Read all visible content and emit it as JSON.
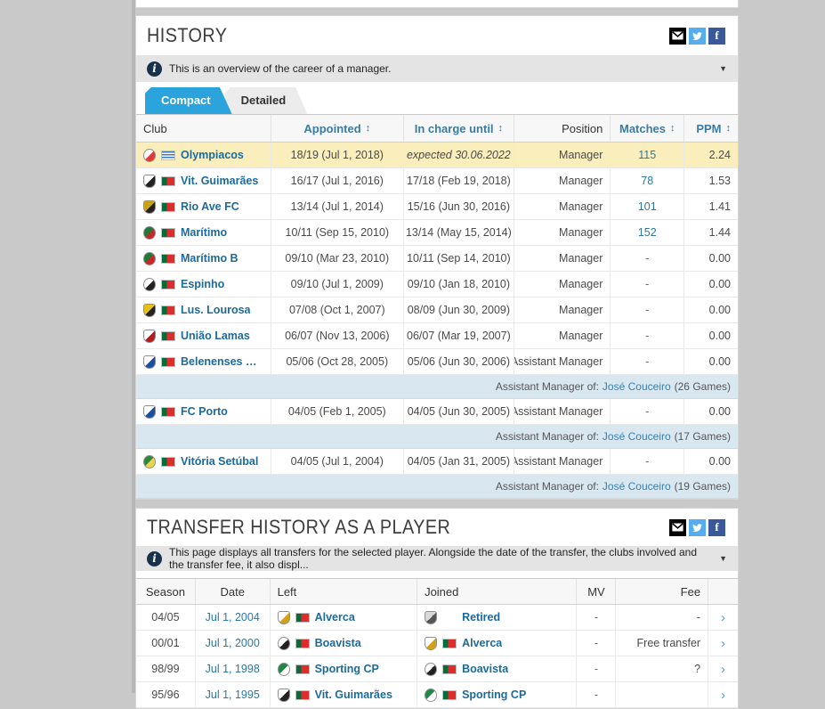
{
  "glyphs": {
    "sort": "↕",
    "caret": "▼",
    "chevron": "›",
    "info": "i",
    "facebook": "f"
  },
  "colors": {
    "accent_tab": "#2ba3dc",
    "highlight_row": "#fbeebd",
    "note_row": "#d9e7f1",
    "link": "#2b77a5",
    "club_link": "#1c6a9c",
    "twitter": "#55acee",
    "facebook": "#3b5998",
    "email": "#000000"
  },
  "history": {
    "title": "HISTORY",
    "info_text": "This is an overview of the career of a manager.",
    "tabs": [
      {
        "label": "Compact",
        "active": true
      },
      {
        "label": "Detailed",
        "active": false
      }
    ],
    "columns": {
      "club": "Club",
      "appointed": "Appointed",
      "until": "In charge until",
      "position": "Position",
      "matches": "Matches",
      "ppm": "PPM"
    },
    "rows": [
      {
        "type": "club",
        "club": "Olympiacos",
        "flag": "gr",
        "crest": {
          "shape": "circle",
          "c1": "#ffffff",
          "c2": "#e03a3a"
        },
        "appointed": "18/19 (Jul 1, 2018)",
        "until": "expected 30.06.2022",
        "until_italic": true,
        "position": "Manager",
        "matches": "115",
        "matches_link": true,
        "ppm": "2.24",
        "highlight": true
      },
      {
        "type": "club",
        "club": "Vit. Guimarães",
        "flag": "pt",
        "crest": {
          "shape": "shield",
          "c1": "#ffffff",
          "c2": "#222222"
        },
        "appointed": "16/17 (Jul 1, 2016)",
        "until": "17/18 (Feb 19, 2018)",
        "position": "Manager",
        "matches": "78",
        "matches_link": true,
        "ppm": "1.53"
      },
      {
        "type": "club",
        "club": "Rio Ave FC",
        "flag": "pt",
        "crest": {
          "shape": "shield",
          "c1": "#c8a314",
          "c2": "#222222"
        },
        "appointed": "13/14 (Jul 1, 2014)",
        "until": "15/16 (Jun 30, 2016)",
        "position": "Manager",
        "matches": "101",
        "matches_link": true,
        "ppm": "1.41"
      },
      {
        "type": "club",
        "club": "Marítimo",
        "flag": "pt",
        "crest": {
          "shape": "circle",
          "c1": "#1b7a38",
          "c2": "#c62828"
        },
        "appointed": "10/11 (Sep 15, 2010)",
        "until": "13/14 (May 15, 2014)",
        "position": "Manager",
        "matches": "152",
        "matches_link": true,
        "ppm": "1.44"
      },
      {
        "type": "club",
        "club": "Marítimo B",
        "flag": "pt",
        "crest": {
          "shape": "circle",
          "c1": "#1b7a38",
          "c2": "#c62828"
        },
        "appointed": "09/10 (Mar 23, 2010)",
        "until": "10/11 (Sep 14, 2010)",
        "position": "Manager",
        "matches": "-",
        "ppm": "0.00"
      },
      {
        "type": "club",
        "club": "Espinho",
        "flag": "pt",
        "crest": {
          "shape": "circle",
          "c1": "#ffffff",
          "c2": "#222222"
        },
        "appointed": "09/10 (Jul 1, 2009)",
        "until": "09/10 (Jan 18, 2010)",
        "position": "Manager",
        "matches": "-",
        "ppm": "0.00"
      },
      {
        "type": "club",
        "club": "Lus. Lourosa",
        "flag": "pt",
        "crest": {
          "shape": "shield",
          "c1": "#e6c019",
          "c2": "#222222"
        },
        "appointed": "07/08 (Oct 1, 2007)",
        "until": "08/09 (Jun 30, 2009)",
        "position": "Manager",
        "matches": "-",
        "ppm": "0.00"
      },
      {
        "type": "club",
        "club": "União Lamas",
        "flag": "pt",
        "crest": {
          "shape": "shield",
          "c1": "#ffffff",
          "c2": "#b71c1c"
        },
        "appointed": "06/07 (Nov 13, 2006)",
        "until": "06/07 (Mar 19, 2007)",
        "position": "Manager",
        "matches": "-",
        "ppm": "0.00"
      },
      {
        "type": "club",
        "club": "Belenenses SAD",
        "flag": "pt",
        "crest": {
          "shape": "shield",
          "c1": "#ffffff",
          "c2": "#1e4f9c"
        },
        "appointed": "05/06 (Oct 28, 2005)",
        "until": "05/06 (Jun 30, 2006)",
        "position": "Assistant Manager",
        "matches": "-",
        "ppm": "0.00"
      },
      {
        "type": "note",
        "prefix": "Assistant Manager of:",
        "link": "José Couceiro",
        "suffix": "(26 Games)"
      },
      {
        "type": "club",
        "club": "FC Porto",
        "flag": "pt",
        "crest": {
          "shape": "shield",
          "c1": "#ffffff",
          "c2": "#1a4f9e"
        },
        "appointed": "04/05 (Feb 1, 2005)",
        "until": "04/05 (Jun 30, 2005)",
        "position": "Assistant Manager",
        "matches": "-",
        "ppm": "0.00"
      },
      {
        "type": "note",
        "prefix": "Assistant Manager of:",
        "link": "José Couceiro",
        "suffix": "(17 Games)"
      },
      {
        "type": "club",
        "club": "Vitória Setúbal",
        "flag": "pt",
        "crest": {
          "shape": "circle",
          "c1": "#2b8a3e",
          "c2": "#e8d44d"
        },
        "appointed": "04/05 (Jul 1, 2004)",
        "until": "04/05 (Jan 31, 2005)",
        "position": "Assistant Manager",
        "matches": "-",
        "ppm": "0.00"
      },
      {
        "type": "note",
        "prefix": "Assistant Manager of:",
        "link": "José Couceiro",
        "suffix": "(19 Games)"
      }
    ]
  },
  "transfers": {
    "title": "TRANSFER HISTORY AS A PLAYER",
    "info_text": "This page displays all transfers for the selected player. Alongside the date of the transfer, the clubs involved and the transfer fee, it also displ...",
    "columns": {
      "season": "Season",
      "date": "Date",
      "left": "Left",
      "joined": "Joined",
      "mv": "MV",
      "fee": "Fee"
    },
    "rows": [
      {
        "season": "04/05",
        "date": "Jul 1, 2004",
        "left": {
          "club": "Alverca",
          "flag": "pt",
          "crest": {
            "shape": "shield",
            "c1": "#ffffff",
            "c2": "#d4a017"
          }
        },
        "joined": {
          "club": "Retired",
          "flag": null,
          "crest": {
            "shape": "shield",
            "c1": "#d9d9d9",
            "c2": "#555555"
          }
        },
        "mv": "-",
        "fee": "-"
      },
      {
        "season": "00/01",
        "date": "Jul 1, 2000",
        "left": {
          "club": "Boavista",
          "flag": "pt",
          "crest": {
            "shape": "circle",
            "c1": "#ffffff",
            "c2": "#222222"
          }
        },
        "joined": {
          "club": "Alverca",
          "flag": "pt",
          "crest": {
            "shape": "shield",
            "c1": "#ffffff",
            "c2": "#d4a017"
          }
        },
        "mv": "-",
        "fee": "Free transfer"
      },
      {
        "season": "98/99",
        "date": "Jul 1, 1998",
        "left": {
          "club": "Sporting CP",
          "flag": "pt",
          "crest": {
            "shape": "circle",
            "c1": "#1d8a44",
            "c2": "#ffffff"
          }
        },
        "joined": {
          "club": "Boavista",
          "flag": "pt",
          "crest": {
            "shape": "circle",
            "c1": "#ffffff",
            "c2": "#222222"
          }
        },
        "mv": "-",
        "fee": "?"
      },
      {
        "season": "95/96",
        "date": "Jul 1, 1995",
        "left": {
          "club": "Vit. Guimarães",
          "flag": "pt",
          "crest": {
            "shape": "shield",
            "c1": "#ffffff",
            "c2": "#222222"
          }
        },
        "joined": {
          "club": "Sporting CP",
          "flag": "pt",
          "crest": {
            "shape": "circle",
            "c1": "#1d8a44",
            "c2": "#ffffff"
          }
        },
        "mv": "-",
        "fee": ""
      }
    ]
  }
}
